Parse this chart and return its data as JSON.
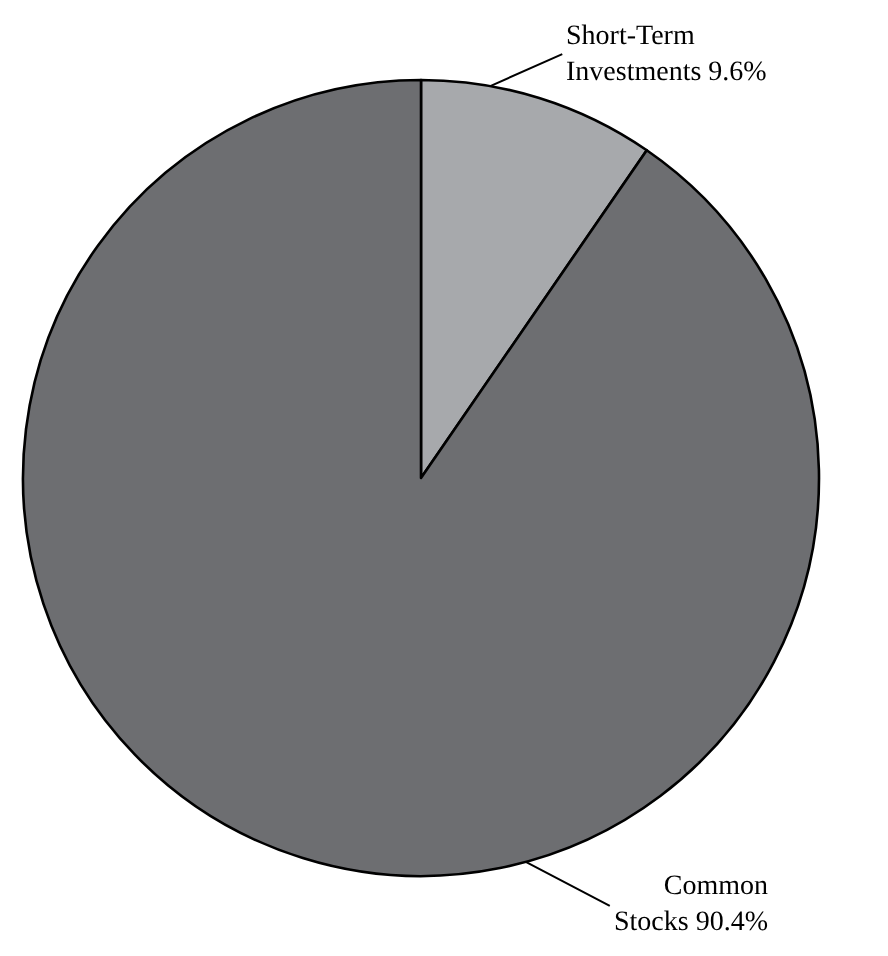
{
  "chart_data": {
    "type": "pie",
    "categories": [
      "Short-Term Investments",
      "Common Stocks"
    ],
    "values": [
      9.6,
      90.4
    ],
    "colors": [
      "#a7a9ac",
      "#6d6e71"
    ],
    "value_labels": [
      "9.6%",
      "90.4%"
    ],
    "legend": false
  }
}
